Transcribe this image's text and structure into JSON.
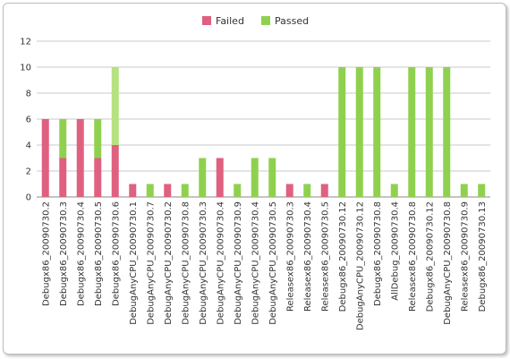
{
  "chart_data": {
    "type": "bar",
    "stacked": true,
    "legend": {
      "position": "top",
      "entries": [
        "Failed",
        "Passed"
      ]
    },
    "grid": true,
    "ylim": [
      0,
      12
    ],
    "yticks": [
      0,
      2,
      4,
      6,
      8,
      10,
      12
    ],
    "categories": [
      "Debugx86_20090730.2",
      "Debugx86_20090730.3",
      "Debugx86_20090730.4",
      "Debugx86_20090730.5",
      "Debugx86_20090730.6",
      "DebugAnyCPU_20090730.1",
      "DebugAnyCPU_20090730.7",
      "DebugAnyCPU_20090730.2",
      "DebugAnyCPU_20090730.8",
      "DebugAnyCPU_20090730.3",
      "DebugAnyCPU_20090730.4",
      "DebugAnyCPU_20090730.9",
      "DebugAnyCPU_20090730.4",
      "DebugAnyCPU_20090730.5",
      "Releasex86_20090730.3",
      "Releasex86_20090730.4",
      "Releasex86_20090730.5",
      "Debugx86_20090730.12",
      "DebugAnyCPU_20090730.12",
      "Debugx86_20090730.8",
      "AllDebug_20090730.4",
      "Releasex86_20090730.8",
      "Debugx86_20090730.12",
      "DebugAnyCPU_20090730.8",
      "Releasex86_20090730.9",
      "Debugx86_20090730.13"
    ],
    "series": [
      {
        "name": "Failed",
        "color": "#e06080",
        "values": [
          6,
          3,
          6,
          3,
          4,
          1,
          0,
          1,
          0,
          0,
          3,
          0,
          0,
          0,
          1,
          0,
          1,
          0,
          0,
          0,
          0,
          0,
          0,
          0,
          0,
          0
        ]
      },
      {
        "name": "Passed",
        "color": "#8fd14f",
        "values": [
          0,
          3,
          0,
          3,
          6,
          0,
          1,
          0,
          1,
          3,
          0,
          1,
          3,
          3,
          0,
          1,
          0,
          10,
          10,
          10,
          1,
          10,
          10,
          10,
          1,
          1
        ]
      }
    ],
    "highlight": {
      "index": 4,
      "passed_color": "#b5e27f"
    }
  }
}
